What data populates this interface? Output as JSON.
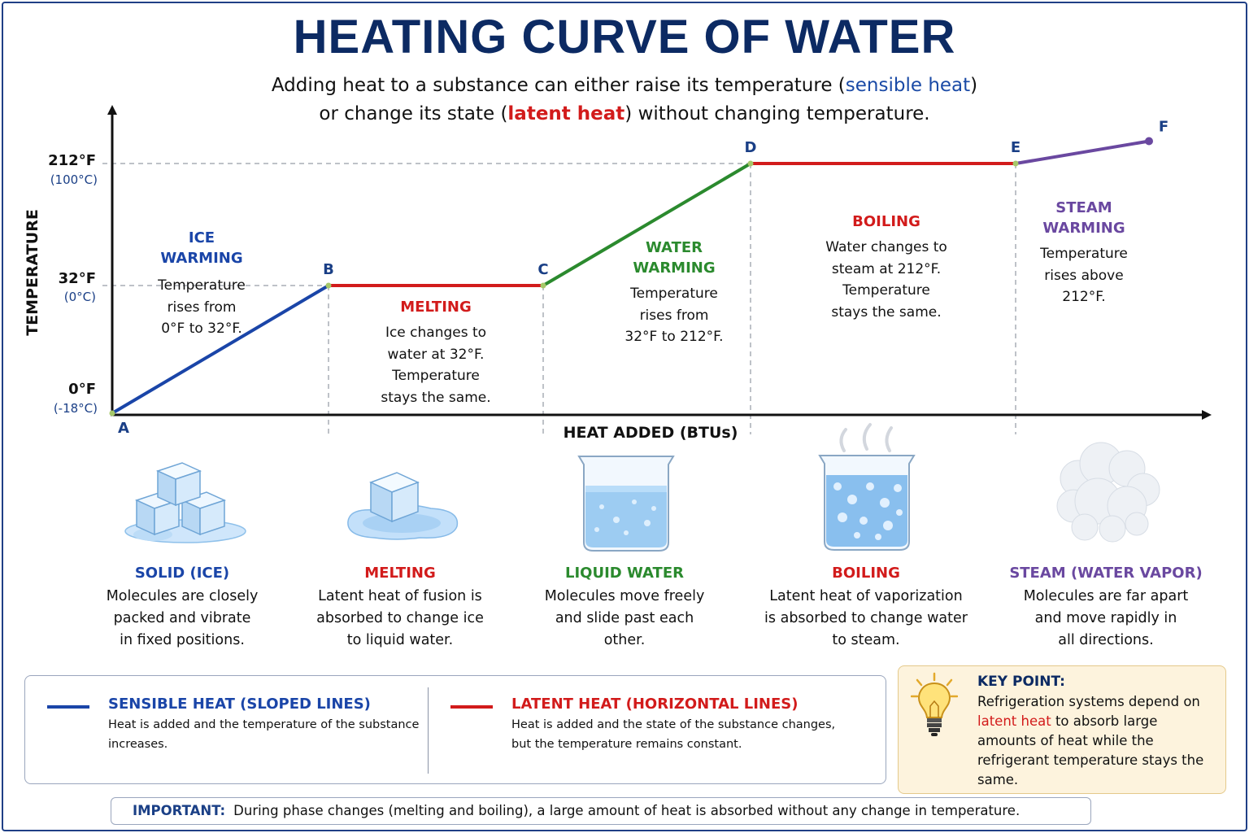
{
  "title": "HEATING CURVE OF WATER",
  "subtitle": {
    "line1_a": "Adding heat to a substance can either raise its temperature (",
    "line1_b": "sensible heat",
    "line1_c": ")",
    "line2_a": "or change its state (",
    "line2_b": "latent heat",
    "line2_c": ") without changing temperature."
  },
  "colors": {
    "title": "#0c2a63",
    "sensible": "#1a45a8",
    "latent": "#d21b1b",
    "water": "#2b8a2e",
    "steam": "#6a48a0",
    "axis": "#111111",
    "keypoint_bg": "#fdf3dd"
  },
  "axes": {
    "y_label": "TEMPERATURE",
    "x_label": "HEAT ADDED (BTUs)",
    "y_ticks": [
      {
        "f": "212°F",
        "c": "(100°C)"
      },
      {
        "f": "32°F",
        "c": "(0°C)"
      },
      {
        "f": "0°F",
        "c": "(-18°C)"
      }
    ]
  },
  "chart_data": {
    "type": "line",
    "title": "HEATING CURVE OF WATER",
    "xlabel": "HEAT ADDED (BTUs)",
    "ylabel": "TEMPERATURE",
    "y_unit": "°F",
    "y_ticks": [
      0,
      32,
      212
    ],
    "points": [
      {
        "label": "A",
        "temp_f": 0
      },
      {
        "label": "B",
        "temp_f": 32
      },
      {
        "label": "C",
        "temp_f": 32
      },
      {
        "label": "D",
        "temp_f": 212
      },
      {
        "label": "E",
        "temp_f": 212
      },
      {
        "label": "F",
        "temp_f": 245
      }
    ],
    "segments": [
      {
        "from": "A",
        "to": "B",
        "kind": "sensible",
        "color": "#1a45a8"
      },
      {
        "from": "B",
        "to": "C",
        "kind": "latent",
        "color": "#d21b1b"
      },
      {
        "from": "C",
        "to": "D",
        "kind": "sensible",
        "color": "#2b8a2e"
      },
      {
        "from": "D",
        "to": "E",
        "kind": "latent",
        "color": "#d21b1b"
      },
      {
        "from": "E",
        "to": "F",
        "kind": "sensible",
        "color": "#6a48a0"
      }
    ]
  },
  "phases": [
    {
      "title": "ICE\nWARMING",
      "color": "#1a45a8",
      "desc": "Temperature\nrises from\n0°F to 32°F."
    },
    {
      "title": "MELTING",
      "color": "#d21b1b",
      "desc": "Ice changes to\nwater at 32°F.\nTemperature\nstays the same."
    },
    {
      "title": "WATER\nWARMING",
      "color": "#2b8a2e",
      "desc": "Temperature\nrises from\n32°F to 212°F."
    },
    {
      "title": "BOILING",
      "color": "#d21b1b",
      "desc": "Water changes to\nsteam at 212°F.\nTemperature\nstays the same."
    },
    {
      "title": "STEAM\nWARMING",
      "color": "#6a48a0",
      "desc": "Temperature\nrises above\n212°F."
    }
  ],
  "states": [
    {
      "title": "SOLID (ICE)",
      "color": "#1a45a8",
      "icon": "ice-cubes-icon",
      "desc": "Molecules are closely\npacked and vibrate\nin fixed positions."
    },
    {
      "title": "MELTING",
      "color": "#d21b1b",
      "icon": "melting-ice-icon",
      "desc": "Latent heat of fusion is\nabsorbed to change ice\nto liquid water."
    },
    {
      "title": "LIQUID WATER",
      "color": "#2b8a2e",
      "icon": "water-beaker-icon",
      "desc": "Molecules move freely\nand slide past each\nother."
    },
    {
      "title": "BOILING",
      "color": "#d21b1b",
      "icon": "boiling-beaker-icon",
      "desc": "Latent heat of vaporization\nis absorbed to change water\nto steam."
    },
    {
      "title": "STEAM (WATER VAPOR)",
      "color": "#6a48a0",
      "icon": "steam-cloud-icon",
      "desc": "Molecules are far apart\nand move rapidly in\nall directions."
    }
  ],
  "legend": {
    "sensible_title": "SENSIBLE HEAT (SLOPED LINES)",
    "sensible_desc": "Heat is added and the temperature of the substance\nincreases.",
    "latent_title": "LATENT HEAT (HORIZONTAL LINES)",
    "latent_desc": "Heat is added and the state of the substance changes,\nbut the temperature remains constant."
  },
  "keypoint": {
    "title": "KEY POINT:",
    "text_a": "Refrigeration systems depend on",
    "text_b": "latent heat",
    "text_c": "to absorb large amounts of heat while the refrigerant temperature stays the same."
  },
  "important": {
    "label": "IMPORTANT:",
    "text": "During phase changes (melting and boiling), a large amount of heat is absorbed without any change in temperature."
  }
}
